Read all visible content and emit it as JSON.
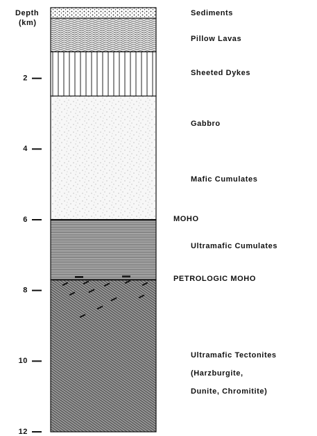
{
  "axis": {
    "label_line1": "Depth",
    "label_line2": "(km)",
    "lim": [
      0,
      12
    ],
    "ticks": [
      2,
      4,
      6,
      8,
      10,
      12
    ]
  },
  "layers": [
    {
      "top": 0,
      "bottom": 0.3
    },
    {
      "top": 0.3,
      "bottom": 1.25
    },
    {
      "top": 1.25,
      "bottom": 2.5
    },
    {
      "top": 2.5,
      "bottom": 6.0
    },
    {
      "top": 6.0,
      "bottom": 7.7
    },
    {
      "top": 7.7,
      "bottom": 12
    }
  ],
  "labels": {
    "sediments": "Sediments",
    "pillow_lavas": "Pillow Lavas",
    "sheeted_dykes": "Sheeted Dykes",
    "gabbro": "Gabbro",
    "mafic_cumulates": "Mafic Cumulates",
    "moho": "MOHO",
    "ultramafic_cumulates": "Ultramafic Cumulates",
    "petrologic_moho": "PETROLOGIC MOHO",
    "tectonites_1": "Ultramafic Tectonites",
    "tectonites_2": "(Harzburgite,",
    "tectonites_3": "Dunite, Chromitite)"
  }
}
